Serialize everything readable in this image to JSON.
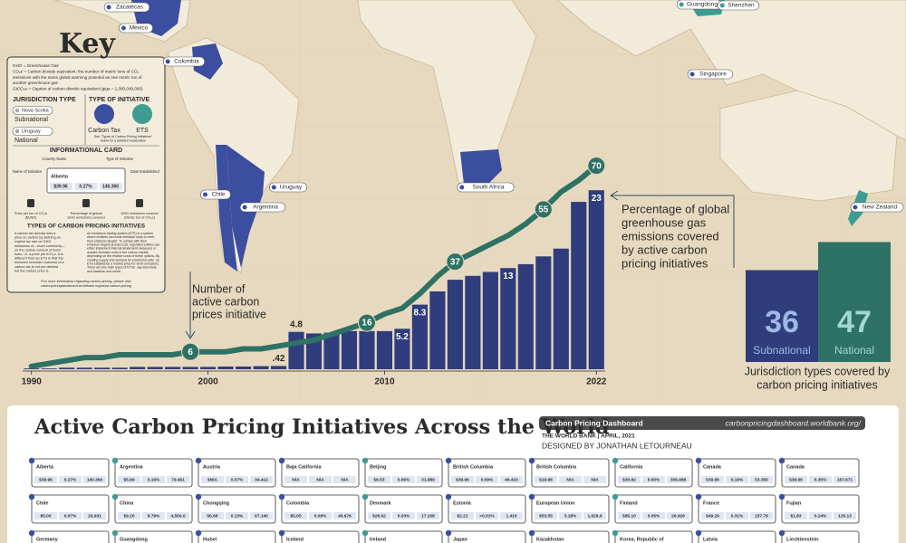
{
  "chart_data": [
    {
      "type": "combo",
      "x": [
        1990,
        1991,
        1992,
        1993,
        1994,
        1995,
        1996,
        1997,
        1998,
        1999,
        2000,
        2001,
        2002,
        2003,
        2004,
        2005,
        2006,
        2007,
        2008,
        2009,
        2010,
        2011,
        2012,
        2013,
        2014,
        2015,
        2016,
        2017,
        2018,
        2019,
        2020,
        2021,
        2022
      ],
      "xlim": [
        1989.5,
        2022.5
      ],
      "xticks": [
        1990,
        2000,
        2010,
        2022
      ],
      "ylim": [
        0,
        25
      ],
      "y2lim": [
        0,
        80
      ],
      "series": [
        {
          "type": "bar",
          "color": "#2f3d7c",
          "axis": "y",
          "values": [
            0.1,
            0.1,
            0.2,
            0.2,
            0.2,
            0.2,
            0.3,
            0.3,
            0.3,
            0.3,
            0.3,
            0.35,
            0.35,
            0.4,
            0.42,
            4.8,
            4.6,
            4.7,
            4.9,
            4.9,
            4.9,
            5.2,
            8.3,
            10,
            11.5,
            12,
            12.5,
            13,
            13.5,
            14.5,
            15.5,
            21.5,
            23
          ],
          "value_labels": [
            null,
            null,
            null,
            null,
            null,
            null,
            null,
            null,
            null,
            null,
            null,
            null,
            null,
            null,
            ".42",
            "4.8",
            null,
            null,
            null,
            null,
            null,
            "5.2",
            "8.3",
            null,
            null,
            null,
            null,
            "13",
            null,
            null,
            null,
            null,
            "23"
          ]
        },
        {
          "type": "line",
          "color": "#2e7265",
          "axis": "y2",
          "values": [
            1,
            2,
            3,
            4,
            4,
            5,
            5,
            5,
            5,
            6,
            6,
            6,
            7,
            7,
            8,
            9,
            10,
            12,
            14,
            16,
            19,
            21,
            26,
            32,
            37,
            40,
            43,
            46,
            50,
            55,
            61,
            65,
            70
          ],
          "value_labels": [
            null,
            null,
            null,
            null,
            null,
            null,
            null,
            null,
            null,
            "6",
            null,
            null,
            null,
            null,
            null,
            null,
            null,
            null,
            null,
            "16",
            null,
            null,
            null,
            null,
            "37",
            null,
            null,
            null,
            null,
            "55",
            null,
            null,
            "70"
          ]
        }
      ],
      "annotations": [
        {
          "lines": [
            "Number of",
            "active carbon",
            "prices initiative"
          ]
        },
        {
          "lines": [
            "Percentage of global",
            "greenhouse gas",
            "emissions covered",
            "by active carbon",
            "pricing initiatives"
          ]
        }
      ]
    },
    {
      "type": "bar",
      "categories": [
        "Subnational",
        "National"
      ],
      "values": [
        36,
        47
      ],
      "colors": [
        "#2f3d7c",
        "#2e7265"
      ],
      "ylim": [
        0,
        50
      ],
      "caption": [
        "Jurisdiction types covered by",
        "carbon pricing initiatives"
      ]
    }
  ],
  "map_labels": [
    "Zacatecas",
    "Mexico",
    "Colombia",
    "Chile",
    "Argentina",
    "Uruguay",
    "South Africa",
    "Guangdong",
    "Shenzhen",
    "Singapore",
    "New Zealand"
  ],
  "key": {
    "title": "Key",
    "definitions": [
      "GHG = Greenhouse Gas",
      "CO₂e = Carbon dioxide equivalent: the number of metric tons of CO₂",
      "emissions with the same global warming potential as one metric ton of",
      "another greenhouse gas",
      "GtCO₂e = Gigaton of carbon dioxide equivalent (giga = 1,000,000,000)"
    ],
    "jurisdiction_heading": "JURISDICTION TYPE",
    "initiative_heading": "TYPE OF INITIATIVE",
    "jurisdiction_examples": [
      "Nova Scotia",
      "Uruguay"
    ],
    "jurisdiction_types": [
      "Subnational",
      "National"
    ],
    "initiative_types": [
      "Carbon Tax",
      "ETS"
    ],
    "initiative_note": [
      "See \"Types of Carbon Pricing Initiatives\"",
      "below for a detailed explanation"
    ],
    "card_heading": "INFORMATIONAL CARD",
    "card_parts": [
      "Country Name",
      "Type of Initiative",
      "Name of Initiative",
      "Date Established"
    ],
    "card_example": {
      "name": "Alberta",
      "price": "$39.96",
      "share": "0.27%",
      "emissions": "140.360"
    },
    "icon_labels": [
      [
        "Price per ton of CO₂e",
        "($USD)"
      ],
      [
        "Percentage of global",
        "GHG emissions covered"
      ],
      [
        "GHG emissions covered",
        "(Metric ton of CO₂e)"
      ]
    ],
    "types_heading": "TYPES OF CARBON PRICING INITIATIVES",
    "carbon_tax_text": [
      "A carbon tax directly sets a",
      "price on carbon by defining an",
      "explicit tax rate on GHG",
      "emissions or—more commonly—",
      "on the carbon content of fossil",
      "fuels, i.e. a price per tCO₂e. It is",
      "different from an ETS in that the",
      "emission reduction outcome of a",
      "carbon tax is not pre-defined",
      "but the carbon price is."
    ],
    "ets_text": [
      "An emissions trading system (ETS) is a system",
      "where emitters can trade emission units to meet",
      "their emission targets. To comply with their",
      "emission targets at least cost, regulated entities can",
      "either implement internal abatement measures or",
      "acquire emission units in the carbon market,",
      "depending on the relative costs of these options. By",
      "creating supply and demand for emissions units, an",
      "ETS establishes a market price for GHG emissions.",
      "There are two main types of ETSs: cap-and-trade",
      "and baseline-and-credit."
    ],
    "footer": [
      "*For more information regarding carbon pricing, please visit:",
      "carbonpricingdashboard.worldbank.org/what-carbon-pricing"
    ]
  },
  "header": {
    "title": "Active Carbon Pricing Initiatives Across the World",
    "dashboard": "Carbon Pricing Dashboard",
    "url": "carbonpricingdashboard.worldbank.org/",
    "source": "THE WORLD BANK | APRIL, 2021",
    "designer": "DESIGNED BY JONATHAN LETOURNEAU"
  },
  "cards": [
    [
      {
        "name": "Alberta",
        "price": "$39.96",
        "share": "0.27%",
        "emissions": "140.360"
      },
      {
        "name": "Argentina",
        "price": "$5.99",
        "share": "0.16%",
        "emissions": "79.461"
      },
      {
        "name": "Austria",
        "price": "$N/A",
        "share": "0.07%",
        "emissions": "34.412"
      },
      {
        "name": "Baja California",
        "price": "N/A",
        "share": "N/A",
        "emissions": "N/A"
      },
      {
        "name": "Beijing",
        "price": "$6.53",
        "share": "0.06%",
        "emissions": "31.889"
      },
      {
        "name": "British Columbia",
        "price": "$39.96",
        "share": "0.09%",
        "emissions": "46.410"
      },
      {
        "name": "British Columbia",
        "price": "$19.98",
        "share": "N/A",
        "emissions": "N/A"
      },
      {
        "name": "California",
        "price": "$30.82",
        "share": "0.60%",
        "emissions": "309.468"
      },
      {
        "name": "Canada",
        "price": "$39.96",
        "share": "0.19%",
        "emissions": "53.350"
      },
      {
        "name": "Canada",
        "price": "$39.96",
        "share": "0.35%",
        "emissions": "167.671"
      }
    ],
    [
      {
        "name": "Chile",
        "price": "$5.00",
        "share": "0.07%",
        "emissions": "26.931"
      },
      {
        "name": "China",
        "price": "$9.20",
        "share": "8.79%",
        "emissions": "4,500.0"
      },
      {
        "name": "Chongqing",
        "price": "$5.66",
        "share": "0.13%",
        "emissions": "67.140"
      },
      {
        "name": "Colombia",
        "price": "$5.05",
        "share": "0.09%",
        "emissions": "46.676"
      },
      {
        "name": "Denmark",
        "price": "$26.62",
        "share": "0.03%",
        "emissions": "17.208"
      },
      {
        "name": "Estonia",
        "price": "$2.21",
        "share": "<0.01%",
        "emissions": "1.410"
      },
      {
        "name": "European Union",
        "price": "$53.55",
        "share": "3.18%",
        "emissions": "1,626.6"
      },
      {
        "name": "Finland",
        "price": "$85.10",
        "share": "0.05%",
        "emissions": "26.929"
      },
      {
        "name": "France",
        "price": "$49.29",
        "share": "0.31%",
        "emissions": "157.78"
      },
      {
        "name": "Fujian",
        "price": "$1.83",
        "share": "0.24%",
        "emissions": "125.13"
      }
    ],
    [
      {
        "name": "Germany"
      },
      {
        "name": "Guangdong"
      },
      {
        "name": "Hubei"
      },
      {
        "name": "Iceland"
      },
      {
        "name": "Ireland"
      },
      {
        "name": "Japan"
      },
      {
        "name": "Kazakhstan"
      },
      {
        "name": "Korea, Republic of"
      },
      {
        "name": "Latvia"
      },
      {
        "name": "Liechtenstein"
      }
    ]
  ]
}
